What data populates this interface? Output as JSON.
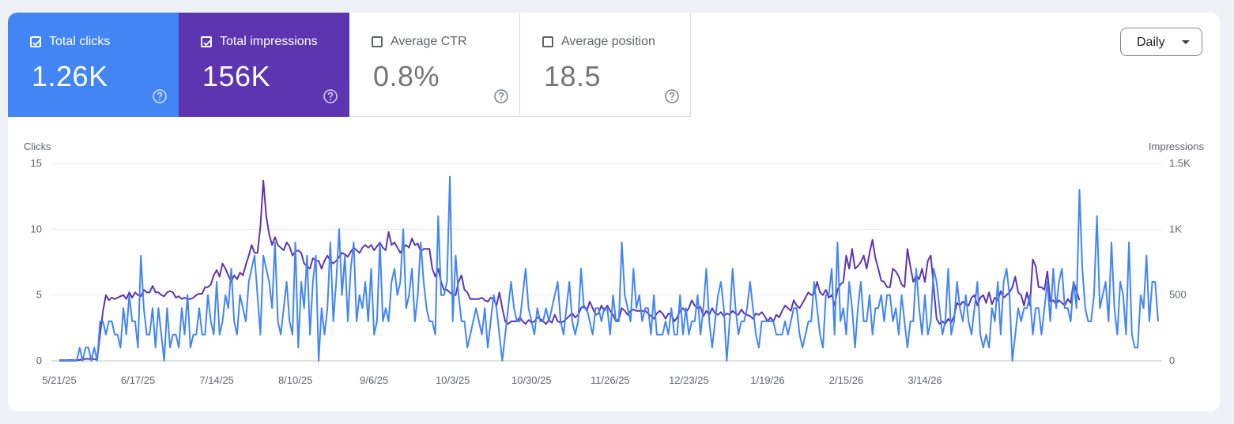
{
  "metrics": [
    {
      "label": "Total clicks",
      "value": "1.26K",
      "checked": true,
      "color": "#4285f4"
    },
    {
      "label": "Total impressions",
      "value": "156K",
      "checked": true,
      "color": "#5e35b1"
    },
    {
      "label": "Average CTR",
      "value": "0.8%",
      "checked": false,
      "color": "#ffffff"
    },
    {
      "label": "Average position",
      "value": "18.5",
      "checked": false,
      "color": "#ffffff"
    }
  ],
  "dropdown": {
    "label": "Daily",
    "icon": "caret-down-icon"
  },
  "help_icon": "help-circle-icon",
  "chart_data": {
    "type": "line",
    "ylabel_left": "Clicks",
    "ylabel_right": "Impressions",
    "x_ticks": [
      "5/21/25",
      "6/17/25",
      "7/14/25",
      "8/10/25",
      "9/6/25",
      "10/3/25",
      "10/30/25",
      "11/26/25",
      "12/23/25",
      "1/19/26",
      "2/15/26",
      "3/14/26"
    ],
    "y_left_ticks": [
      "0",
      "5",
      "10",
      "15"
    ],
    "y_right_ticks": [
      "0",
      "500",
      "1K",
      "1.5K"
    ],
    "ylim_left": [
      0,
      15
    ],
    "ylim_right": [
      0,
      1500
    ],
    "grid": true,
    "series": [
      {
        "name": "Clicks",
        "axis": "left",
        "color": "#4285f4",
        "values": [
          0,
          0,
          0,
          0,
          0,
          0,
          0,
          1,
          0,
          1,
          1,
          0,
          1,
          0,
          3,
          3,
          2,
          3,
          3,
          2,
          2,
          1,
          4,
          2,
          5,
          3,
          3,
          1,
          8,
          4,
          2,
          2,
          4,
          1,
          4,
          2,
          0,
          4,
          1,
          2,
          2,
          1,
          4,
          2,
          5,
          1,
          2,
          2,
          4,
          2,
          2,
          5,
          3,
          2,
          6,
          2,
          3,
          5,
          4,
          7,
          3,
          2,
          5,
          4,
          3,
          6,
          7,
          8,
          5,
          2,
          8,
          7,
          6,
          4,
          9,
          3,
          2,
          4,
          6,
          3,
          2,
          9,
          1,
          6,
          4,
          8,
          2,
          6,
          8,
          0,
          4,
          2,
          4,
          9,
          3,
          6,
          10,
          5,
          8,
          3,
          7,
          9,
          3,
          5,
          4,
          6,
          3,
          7,
          2,
          3,
          9,
          3,
          4,
          3,
          6,
          7,
          5,
          6,
          10,
          4,
          5,
          7,
          3,
          5,
          9,
          6,
          4,
          3,
          3,
          2,
          11,
          5,
          5,
          6,
          14,
          3,
          8,
          5,
          3,
          3,
          1,
          2,
          3,
          4,
          3,
          2,
          4,
          1,
          3,
          5,
          4,
          2,
          0,
          2,
          4,
          6,
          4,
          3,
          3,
          5,
          7,
          4,
          3,
          2,
          4,
          3,
          3,
          4,
          3,
          4,
          5,
          6,
          3,
          2,
          4,
          6,
          3,
          2,
          3,
          7,
          4,
          4,
          3,
          2,
          4,
          4,
          3,
          4,
          4,
          2,
          5,
          3,
          3,
          9,
          5,
          4,
          3,
          7,
          4,
          5,
          3,
          4,
          4,
          2,
          5,
          2,
          2,
          2,
          3,
          2,
          4,
          2,
          2,
          5,
          2,
          4,
          2,
          3,
          3,
          5,
          2,
          4,
          7,
          3,
          1,
          3,
          5,
          6,
          4,
          0,
          3,
          7,
          4,
          2,
          3,
          3,
          4,
          6,
          4,
          2,
          1,
          3,
          3,
          3,
          3,
          3,
          2,
          2,
          2,
          3,
          2,
          3,
          4,
          4,
          2,
          1,
          2,
          3,
          3,
          6,
          4,
          2,
          1,
          5,
          5,
          7,
          2,
          9,
          3,
          4,
          2,
          6,
          4,
          1,
          4,
          6,
          3,
          3,
          5,
          2,
          4,
          4,
          5,
          3,
          5,
          5,
          3,
          4,
          2,
          5,
          3,
          1,
          3,
          3,
          7,
          4,
          2,
          5,
          2,
          3,
          7,
          6,
          4,
          2,
          3,
          7,
          2,
          3,
          6,
          4,
          3,
          5,
          3,
          2,
          4,
          6,
          2,
          1,
          2,
          1,
          4,
          3,
          6,
          2,
          6,
          7,
          5,
          0,
          2,
          4,
          3,
          4,
          4,
          5,
          2,
          4,
          4,
          2,
          4,
          6,
          3,
          7,
          4,
          6,
          7,
          4,
          4,
          3,
          6,
          4,
          13,
          7,
          4,
          3,
          3,
          5,
          11,
          4,
          5,
          6,
          3,
          9,
          4,
          2,
          6,
          5,
          2,
          9,
          2,
          1,
          1,
          5,
          4,
          8,
          3,
          6,
          6,
          3
        ]
      },
      {
        "name": "Impressions",
        "axis": "right",
        "color": "#5e35b1",
        "values": [
          5,
          5,
          5,
          5,
          6,
          5,
          5,
          8,
          10,
          15,
          15,
          12,
          14,
          10,
          200,
          380,
          500,
          460,
          480,
          470,
          480,
          490,
          500,
          470,
          520,
          480,
          520,
          500,
          490,
          540,
          520,
          520,
          570,
          520,
          520,
          500,
          490,
          520,
          530,
          520,
          480,
          490,
          470,
          480,
          470,
          470,
          480,
          500,
          510,
          510,
          560,
          560,
          580,
          650,
          690,
          640,
          740,
          700,
          650,
          600,
          650,
          620,
          670,
          650,
          730,
          800,
          880,
          820,
          820,
          1020,
          1370,
          1100,
          960,
          880,
          940,
          880,
          860,
          840,
          900,
          870,
          800,
          830,
          840,
          820,
          740,
          720,
          700,
          780,
          760,
          760,
          700,
          760,
          800,
          760,
          740,
          760,
          790,
          820,
          810,
          790,
          830,
          860,
          840,
          820,
          860,
          880,
          860,
          880,
          840,
          870,
          900,
          860,
          840,
          980,
          880,
          900,
          860,
          820,
          860,
          880,
          860,
          930,
          880,
          890,
          830,
          850,
          850,
          850,
          700,
          640,
          700,
          600,
          540,
          540,
          520,
          500,
          500,
          600,
          650,
          540,
          520,
          470,
          470,
          470,
          470,
          480,
          460,
          450,
          480,
          470,
          420,
          520,
          400,
          300,
          280,
          300,
          300,
          300,
          330,
          300,
          280,
          310,
          290,
          300,
          330,
          320,
          300,
          280,
          310,
          290,
          350,
          300,
          290,
          300,
          320,
          340,
          360,
          330,
          350,
          400,
          420,
          380,
          450,
          400,
          350,
          360,
          420,
          380,
          420,
          380,
          350,
          300,
          320,
          400,
          380,
          350,
          380,
          390,
          380,
          380,
          380,
          380,
          360,
          340,
          320,
          360,
          380,
          360,
          320,
          360,
          350,
          300,
          330,
          380,
          400,
          370,
          400,
          460,
          420,
          400,
          410,
          340,
          380,
          350,
          400,
          360,
          350,
          370,
          340,
          360,
          350,
          380,
          360,
          350,
          390,
          360,
          350,
          340,
          320,
          360,
          350,
          370,
          340,
          300,
          330,
          300,
          350,
          330,
          380,
          420,
          400,
          380,
          460,
          420,
          400,
          440,
          480,
          520,
          500,
          510,
          600,
          520,
          500,
          540,
          480,
          500,
          420,
          540,
          580,
          600,
          800,
          700,
          850,
          700,
          720,
          750,
          800,
          700,
          820,
          920,
          780,
          700,
          610,
          600,
          560,
          560,
          700,
          680,
          640,
          580,
          560,
          850,
          720,
          600,
          650,
          620,
          700,
          600,
          760,
          800,
          560,
          320,
          280,
          300,
          280,
          320,
          290,
          340,
          440,
          420,
          450,
          430,
          420,
          480,
          500,
          420,
          480,
          500,
          440,
          520,
          430,
          480,
          460,
          530,
          480,
          500,
          520,
          560,
          640,
          520,
          500,
          420,
          520,
          420,
          770,
          720,
          560,
          560,
          540,
          680,
          450,
          460,
          430,
          460,
          440,
          420,
          470,
          440,
          600,
          530,
          460
        ]
      }
    ]
  }
}
